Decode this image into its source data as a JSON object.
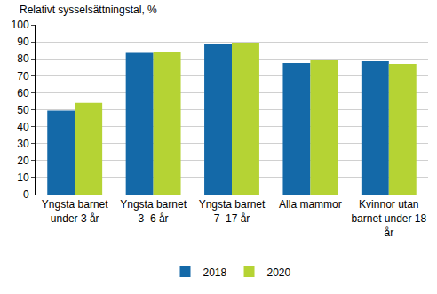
{
  "chart_data": {
    "type": "bar",
    "ylabel": "Relativt sysselsättningstal, %",
    "categories": [
      "Yngsta barnet under 3 år",
      "Yngsta barnet 3–6 år",
      "Yngsta barnet 7–17 år",
      "Alla mammor",
      "Kvinnor utan barnet under 18 år"
    ],
    "series": [
      {
        "name": "2018",
        "color": "#1469a8",
        "values": [
          49.5,
          83.5,
          89,
          77.5,
          78.5
        ]
      },
      {
        "name": "2020",
        "color": "#b5d334",
        "values": [
          54,
          84,
          89.5,
          79,
          77
        ]
      }
    ],
    "ylim": [
      0,
      100
    ],
    "yticks": [
      0,
      10,
      20,
      30,
      40,
      50,
      60,
      70,
      80,
      90,
      100
    ],
    "grid": true,
    "legend": "bottom"
  }
}
